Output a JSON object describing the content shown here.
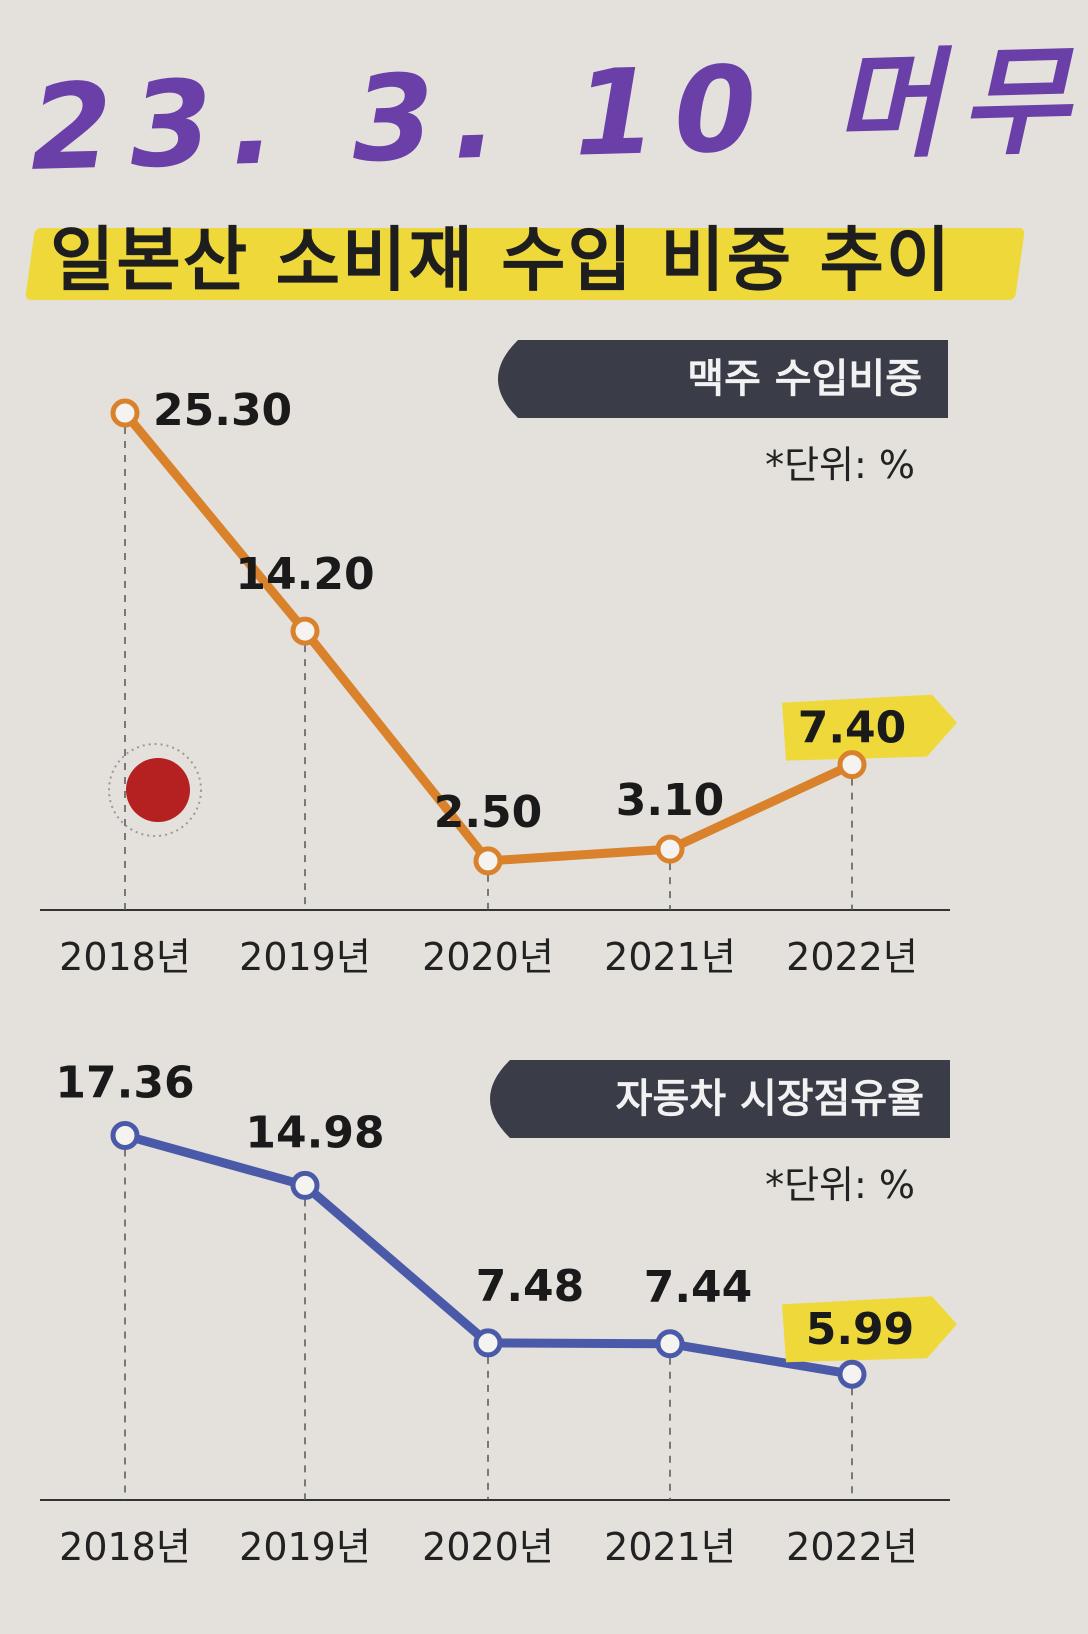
{
  "annotation": "23. 3. 10 머무",
  "title": "일본산 소비재 수입 비중 추이",
  "colors": {
    "beer_line": "#d9822b",
    "car_line": "#4a5aa8",
    "highlight": "#efd93a",
    "badge_bg": "#3a3d48",
    "japan_dot": "#b52020"
  },
  "chart_data": [
    {
      "type": "line",
      "title": "맥주 수입비중",
      "unit_label": "*단위: %",
      "x": [
        "2018년",
        "2019년",
        "2020년",
        "2021년",
        "2022년"
      ],
      "series": [
        {
          "values": [
            25.3,
            14.2,
            2.5,
            3.1,
            7.4
          ]
        }
      ],
      "data_labels": [
        "25.30",
        "14.20",
        "2.50",
        "3.10",
        "7.40"
      ],
      "highlighted_point": "2022년",
      "ylim": [
        0,
        28
      ],
      "grid": false
    },
    {
      "type": "line",
      "title": "자동차 시장점유율",
      "unit_label": "*단위: %",
      "x": [
        "2018년",
        "2019년",
        "2020년",
        "2021년",
        "2022년"
      ],
      "series": [
        {
          "values": [
            17.36,
            14.98,
            7.48,
            7.44,
            5.99
          ]
        }
      ],
      "data_labels": [
        "17.36",
        "14.98",
        "7.48",
        "7.44",
        "5.99"
      ],
      "highlighted_point": "2022년",
      "ylim": [
        0,
        20
      ],
      "grid": false
    }
  ]
}
